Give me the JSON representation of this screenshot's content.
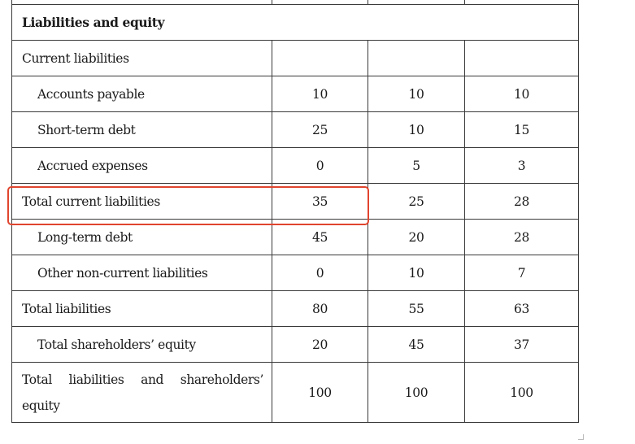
{
  "table": {
    "section_header": "Liabilities and equity",
    "rows": [
      {
        "label": "Current liabilities",
        "values": [
          "",
          "",
          ""
        ],
        "indent": false
      },
      {
        "label": "Accounts payable",
        "values": [
          "10",
          "10",
          "10"
        ],
        "indent": true
      },
      {
        "label": "Short-term debt",
        "values": [
          "25",
          "10",
          "15"
        ],
        "indent": true
      },
      {
        "label": "Accrued expenses",
        "values": [
          "0",
          "5",
          "3"
        ],
        "indent": true
      },
      {
        "label": "Total current liabilities",
        "values": [
          "35",
          "25",
          "28"
        ],
        "indent": false
      },
      {
        "label": "Long-term debt",
        "values": [
          "45",
          "20",
          "28"
        ],
        "indent": true
      },
      {
        "label": "Other non-current liabilities",
        "values": [
          "0",
          "10",
          "7"
        ],
        "indent": true
      },
      {
        "label": "Total liabilities",
        "values": [
          "80",
          "55",
          "63"
        ],
        "indent": false
      },
      {
        "label": "Total shareholders’ equity",
        "values": [
          "20",
          "45",
          "37"
        ],
        "indent": true
      },
      {
        "label": "Total liabilities and shareholders’ equity",
        "values": [
          "100",
          "100",
          "100"
        ],
        "indent": false
      }
    ]
  },
  "highlight": {
    "row_label": "Total current liabilities",
    "color": "#e0452e"
  }
}
